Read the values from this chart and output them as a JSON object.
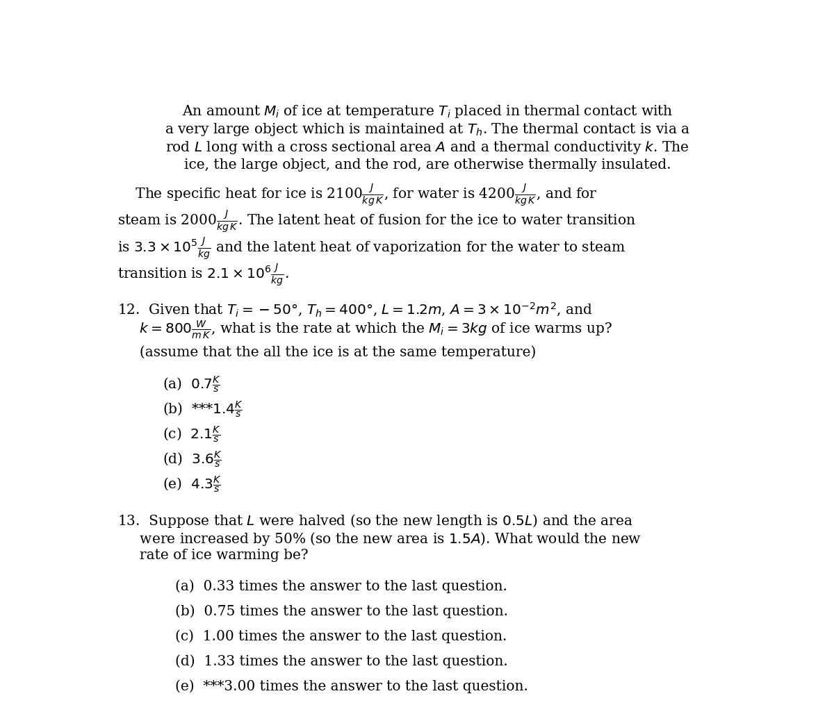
{
  "bg_color": "#ffffff",
  "fig_width": 12.0,
  "fig_height": 10.38,
  "font_size": 14.5,
  "para1": [
    "An amount $M_i$ of ice at temperature $T_i$ placed in thermal contact with",
    "a very large object which is maintained at $T_h$. The thermal contact is via a",
    "rod $L$ long with a cross sectional area $A$ and a thermal conductivity $k$. The",
    "ice, the large object, and the rod, are otherwise thermally insulated."
  ],
  "para2": [
    "    The specific heat for ice is 2100$\\frac{J}{kg\\,K}$, for water is 4200$\\frac{J}{kg\\,K}$, and for",
    "steam is 2000$\\frac{J}{kg\\,K}$. The latent heat of fusion for the ice to water transition",
    "is $3.3 \\times 10^5\\frac{J}{kg}$ and the latent heat of vaporization for the water to steam",
    "transition is $2.1 \\times 10^6\\frac{J}{kg}$."
  ],
  "q12_lines": [
    "12.  Given that $T_i = -50°$, $T_h = 400°$, $L = 1.2m$, $A = 3 \\times 10^{-2}m^2$, and",
    "     $k = 800\\frac{W}{m\\,K}$, what is the rate at which the $M_i = 3kg$ of ice warms up?",
    "     (assume that the all the ice is at the same temperature)"
  ],
  "q12_answers": [
    "(a)  $0.7\\frac{K}{s}$",
    "(b)  ***$1.4\\frac{K}{s}$",
    "(c)  $2.1\\frac{K}{s}$",
    "(d)  $3.6\\frac{K}{s}$",
    "(e)  $4.3\\frac{K}{s}$"
  ],
  "q13_lines": [
    "13.  Suppose that $L$ were halved (so the new length is $0.5L$) and the area",
    "     were increased by 50% (so the new area is $1.5A$). What would the new",
    "     rate of ice warming be?"
  ],
  "q13_answers": [
    "(a)  0.33 times the answer to the last question.",
    "(b)  0.75 times the answer to the last question.",
    "(c)  1.00 times the answer to the last question.",
    "(d)  1.33 times the answer to the last question.",
    "(e)  ***3.00 times the answer to the last question."
  ]
}
